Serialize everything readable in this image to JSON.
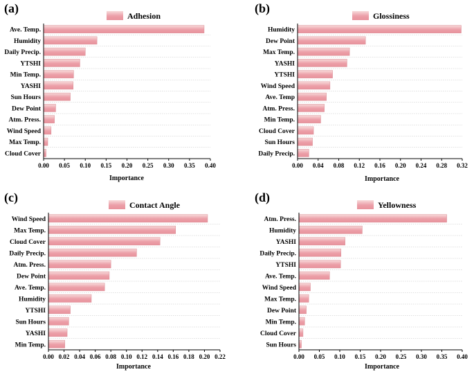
{
  "colors": {
    "bar_top": "#f7dada",
    "bar_mid": "#ec9fa8",
    "bar_bottom": "#e8929c",
    "bar_edge": "#d98b93",
    "axis": "#000000",
    "row_divider": "#c0c0c0"
  },
  "chart_data": [
    {
      "type": "bar",
      "orientation": "horizontal",
      "panel_label": "(a)",
      "title": "Adhesion",
      "xlabel": "Importance",
      "ylabel": "",
      "xlim": [
        0,
        0.4
      ],
      "xticks": [
        "0.00",
        "0.05",
        "0.10",
        "0.15",
        "0.20",
        "0.25",
        "0.30",
        "0.35",
        "0.40"
      ],
      "categories": [
        "Ave. Temp.",
        "Humidity",
        "Daily Precip.",
        "YTSHI",
        "Min Temp.",
        "YASHI",
        "Sun Hours",
        "Dew Point",
        "Atm. Press.",
        "Wind Speed",
        "Max Temp.",
        "Cloud Cover"
      ],
      "values": [
        0.385,
        0.128,
        0.1,
        0.087,
        0.072,
        0.071,
        0.064,
        0.029,
        0.026,
        0.018,
        0.01,
        0.006
      ],
      "legend": "top-center"
    },
    {
      "type": "bar",
      "orientation": "horizontal",
      "panel_label": "(b)",
      "title": "Glossiness",
      "xlabel": "Importance",
      "ylabel": "",
      "xlim": [
        0,
        0.32
      ],
      "xticks": [
        "0.00",
        "0.04",
        "0.08",
        "0.12",
        "0.16",
        "0.20",
        "0.24",
        "0.28",
        "0.32"
      ],
      "categories": [
        "Humidity",
        "Dew Point",
        "Max Temp.",
        "YASHI",
        "YTSHI",
        "Wind Speed",
        "Ave. Temp",
        "Atm. Press.",
        "Min Temp.",
        "Cloud Cover",
        "Sun Hours",
        "Daily Precip."
      ],
      "values": [
        0.318,
        0.132,
        0.101,
        0.096,
        0.068,
        0.063,
        0.056,
        0.052,
        0.045,
        0.031,
        0.029,
        0.022
      ],
      "legend": "top-center"
    },
    {
      "type": "bar",
      "orientation": "horizontal",
      "panel_label": "(c)",
      "title": "Contact Angle",
      "xlabel": "Importance",
      "ylabel": "",
      "xlim": [
        0,
        0.22
      ],
      "xticks": [
        "0.00",
        "0.02",
        "0.04",
        "0.06",
        "0.08",
        "0.10",
        "0.12",
        "0.14",
        "0.16",
        "0.18",
        "0.20",
        "0.22"
      ],
      "categories": [
        "Wind Speed",
        "Max Temp.",
        "Cloud Cover",
        "Daily Precip.",
        "Atm. Press.",
        "Dew Point",
        "Ave. Temp.",
        "Humidity",
        "YTSHI",
        "Sun Hours",
        "YASHI",
        "Min Temp."
      ],
      "values": [
        0.204,
        0.163,
        0.143,
        0.113,
        0.08,
        0.078,
        0.072,
        0.055,
        0.028,
        0.026,
        0.024,
        0.021
      ],
      "legend": "top-center"
    },
    {
      "type": "bar",
      "orientation": "horizontal",
      "panel_label": "(d)",
      "title": "Yellowness",
      "xlabel": "Importance",
      "ylabel": "",
      "xlim": [
        0,
        0.4
      ],
      "xticks": [
        "0.00",
        "0.05",
        "0.10",
        "0.15",
        "0.20",
        "0.25",
        "0.30",
        "0.35",
        "0.40"
      ],
      "categories": [
        "Atm. Press.",
        "Humidity",
        "YASHI",
        "Daily Precip.",
        "YTSHI",
        "Ave. Temp.",
        "Wind Speed",
        "Max Temp.",
        "Dew Point",
        "Min Temp.",
        "Cloud Cover",
        "Sun Hours"
      ],
      "values": [
        0.362,
        0.155,
        0.113,
        0.103,
        0.102,
        0.075,
        0.028,
        0.024,
        0.018,
        0.014,
        0.01,
        0.006
      ],
      "legend": "top-center"
    }
  ]
}
